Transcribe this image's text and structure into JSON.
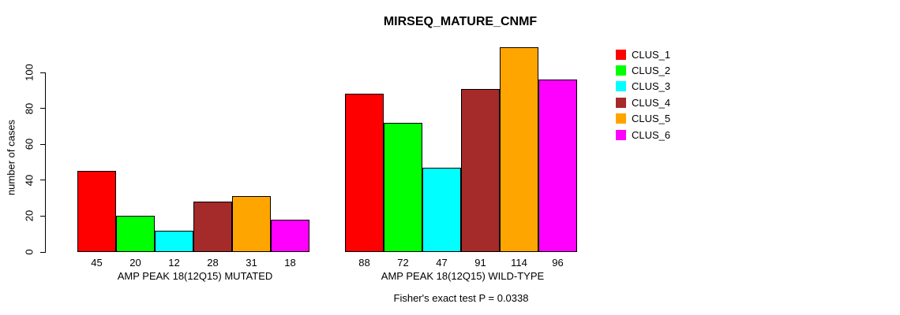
{
  "chart_data": {
    "type": "bar",
    "title": "MIRSEQ_MATURE_CNMF",
    "ylabel": "number of cases",
    "xlabel": "",
    "yticks": [
      0,
      20,
      40,
      60,
      80,
      100
    ],
    "ylim": [
      0,
      115
    ],
    "grid": false,
    "legend_position": "right",
    "legend": [
      {
        "label": "CLUS_1",
        "color": "#FF0000"
      },
      {
        "label": "CLUS_2",
        "color": "#00FF00"
      },
      {
        "label": "CLUS_3",
        "color": "#00FFFF"
      },
      {
        "label": "CLUS_4",
        "color": "#A52A2A"
      },
      {
        "label": "CLUS_5",
        "color": "#FFA500"
      },
      {
        "label": "CLUS_6",
        "color": "#FF00FF"
      }
    ],
    "categories": [
      "CLUS_1",
      "CLUS_2",
      "CLUS_3",
      "CLUS_4",
      "CLUS_5",
      "CLUS_6"
    ],
    "groups": [
      {
        "label": "AMP PEAK 18(12Q15) MUTATED",
        "values": [
          45,
          20,
          12,
          28,
          31,
          18
        ]
      },
      {
        "label": "AMP PEAK 18(12Q15) WILD-TYPE",
        "values": [
          88,
          72,
          47,
          91,
          114,
          96
        ]
      }
    ],
    "footnote": "Fisher's exact test P = 0.0338"
  }
}
